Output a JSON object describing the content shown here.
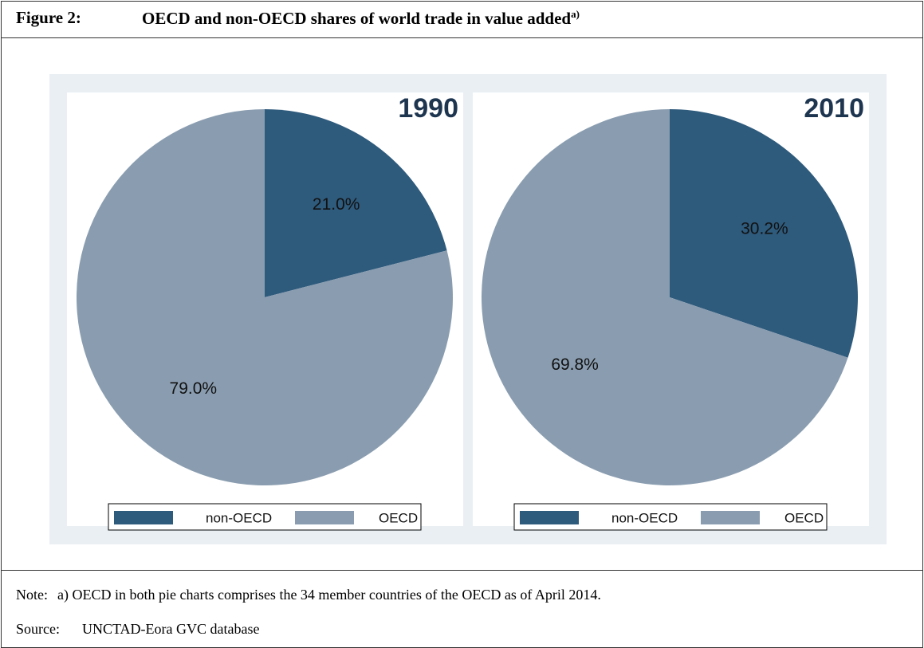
{
  "figure": {
    "label": "Figure 2:",
    "title": "OECD and non-OECD shares of world trade in value added",
    "superscript": "a)"
  },
  "chart_data": [
    {
      "type": "pie",
      "title": "1990",
      "labels": [
        "non-OECD",
        "OECD"
      ],
      "values": [
        21.0,
        79.0
      ],
      "value_labels": [
        "21.0%",
        "79.0%"
      ],
      "colors": [
        "#2e5a7c",
        "#8a9db0"
      ]
    },
    {
      "type": "pie",
      "title": "2010",
      "labels": [
        "non-OECD",
        "OECD"
      ],
      "values": [
        30.2,
        69.8
      ],
      "value_labels": [
        "30.2%",
        "69.8%"
      ],
      "colors": [
        "#2e5a7c",
        "#8a9db0"
      ]
    }
  ],
  "note": {
    "label": "Note:",
    "text": "a) OECD in both pie charts comprises the 34 member countries of the OECD as of April 2014."
  },
  "source": {
    "label": "Source:",
    "text": "UNCTAD-Eora GVC database"
  }
}
